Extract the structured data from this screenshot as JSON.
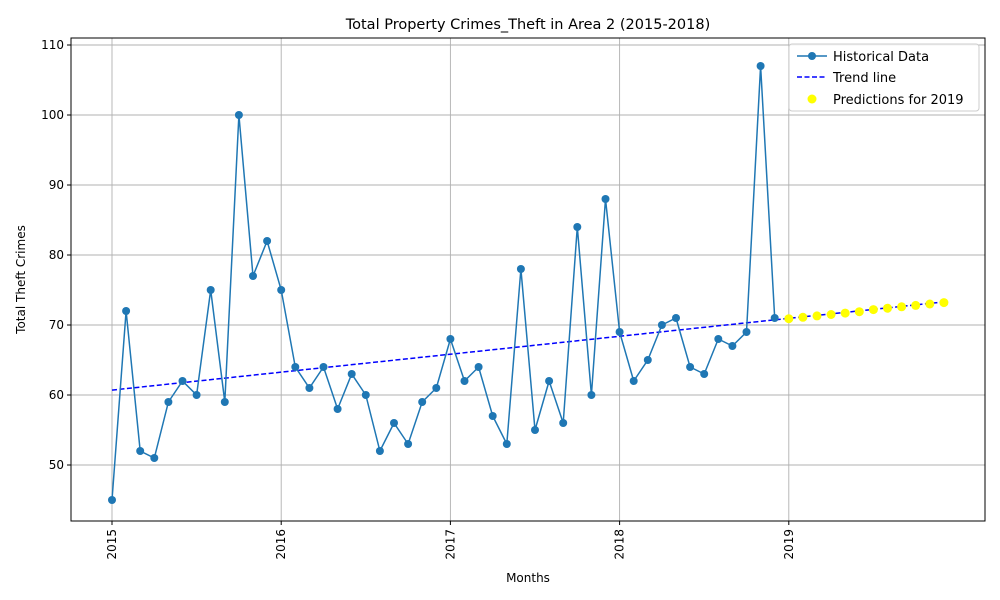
{
  "chart_data": {
    "type": "line",
    "title": "Total Property Crimes_Theft in Area 2 (2015-2018)",
    "xlabel": "Months",
    "ylabel": "Total Theft Crimes",
    "x_tick_labels": [
      "2015",
      "2016",
      "2017",
      "2018",
      "2019"
    ],
    "y_ticks": [
      50,
      60,
      70,
      80,
      90,
      100,
      110
    ],
    "ylim": [
      42,
      111
    ],
    "grid": true,
    "legend_position": "top-right",
    "colors": {
      "historical": "#1f77b4",
      "trend": "#0000ff",
      "predictions": "#ffff00"
    },
    "series": [
      {
        "name": "Historical Data",
        "start": "2015-01",
        "values": [
          45,
          72,
          52,
          51,
          59,
          62,
          60,
          75,
          59,
          100,
          77,
          82,
          75,
          64,
          61,
          64,
          58,
          63,
          60,
          52,
          56,
          53,
          59,
          61,
          68,
          62,
          64,
          57,
          53,
          78,
          55,
          62,
          56,
          84,
          60,
          88,
          69,
          62,
          65,
          70,
          71,
          64,
          63,
          68,
          67,
          69,
          107,
          71
        ]
      },
      {
        "name": "Trend line",
        "start": "2015-01",
        "end": "2019-12",
        "start_value": 60.7,
        "end_value": 73.3
      },
      {
        "name": "Predictions for 2019",
        "start": "2019-01",
        "values": [
          70.9,
          71.1,
          71.3,
          71.5,
          71.7,
          71.9,
          72.2,
          72.4,
          72.6,
          72.8,
          73.0,
          73.2
        ]
      }
    ]
  }
}
